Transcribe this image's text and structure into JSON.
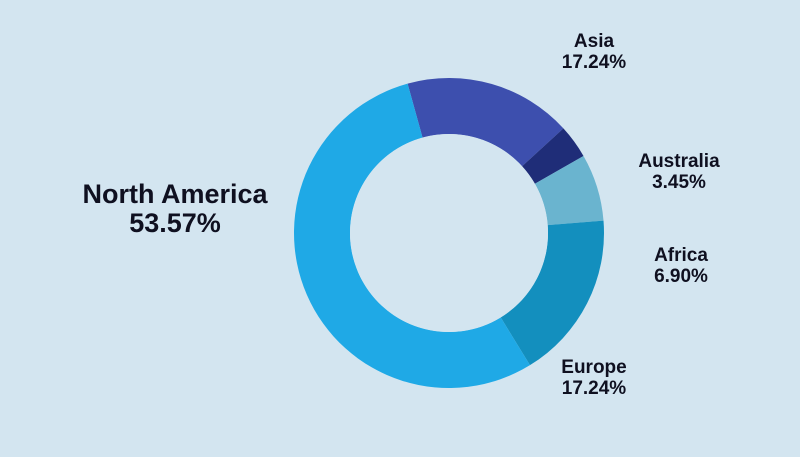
{
  "chart_data": {
    "type": "pie",
    "variant": "donut",
    "slices": [
      {
        "name": "Asia",
        "value": 17.24,
        "label": "17.24%",
        "color": "#3d4fae"
      },
      {
        "name": "Australia",
        "value": 3.45,
        "label": "3.45%",
        "color": "#1f2d78"
      },
      {
        "name": "Africa",
        "value": 6.9,
        "label": "6.90%",
        "color": "#6ab4cf"
      },
      {
        "name": "Europe",
        "value": 17.24,
        "label": "17.24%",
        "color": "#138fbe"
      },
      {
        "name": "North America",
        "value": 53.57,
        "label": "53.57%",
        "color": "#1fa9e6"
      }
    ],
    "background": "#d3e5f0",
    "hole_color": "#d3e5f0",
    "legend": "none"
  }
}
